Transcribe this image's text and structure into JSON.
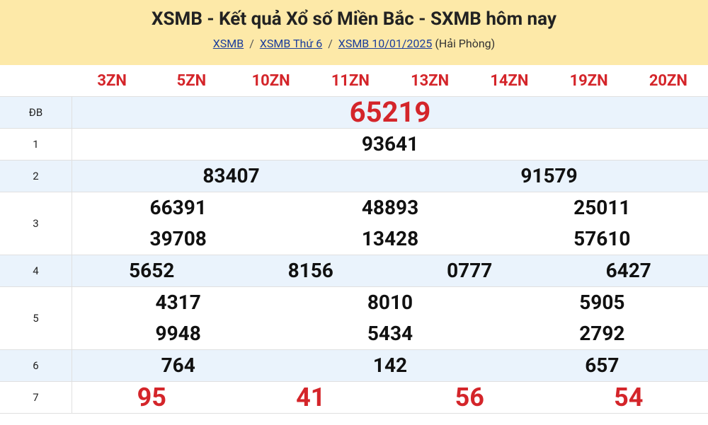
{
  "header": {
    "title": "XSMB - Kết quả Xổ số Miền Bắc - SXMB hôm nay",
    "breadcrumbs": [
      "XSMB",
      "XSMB Thứ 6",
      "XSMB 10/01/2025"
    ],
    "province": "(Hải Phòng)"
  },
  "table": {
    "codes": [
      "3ZN",
      "5ZN",
      "10ZN",
      "11ZN",
      "13ZN",
      "14ZN",
      "19ZN",
      "20ZN"
    ],
    "prizes": [
      {
        "label": "ĐB",
        "numbers": [
          "65219"
        ]
      },
      {
        "label": "1",
        "numbers": [
          "93641"
        ]
      },
      {
        "label": "2",
        "numbers": [
          "83407",
          "91579"
        ]
      },
      {
        "label": "3",
        "numbers": [
          "66391",
          "48893",
          "25011",
          "39708",
          "13428",
          "57610"
        ]
      },
      {
        "label": "4",
        "numbers": [
          "5652",
          "8156",
          "0777",
          "6427"
        ]
      },
      {
        "label": "5",
        "numbers": [
          "4317",
          "8010",
          "5905",
          "9948",
          "5434",
          "2792"
        ]
      },
      {
        "label": "6",
        "numbers": [
          "764",
          "142",
          "657"
        ]
      },
      {
        "label": "7",
        "numbers": [
          "95",
          "41",
          "56",
          "54"
        ]
      }
    ]
  }
}
